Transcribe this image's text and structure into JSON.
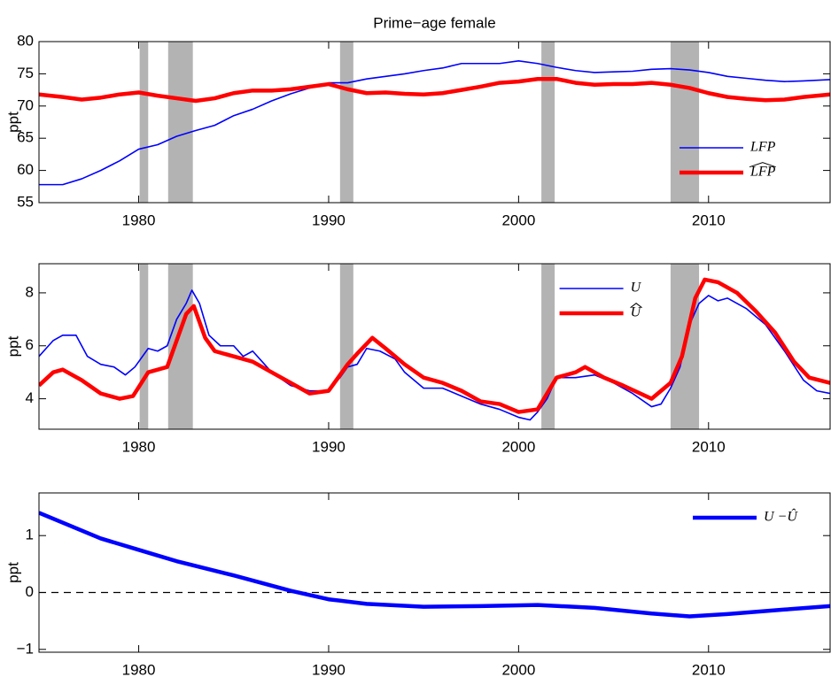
{
  "chart_data": [
    {
      "type": "line",
      "title": "Prime−age female",
      "ylabel": "ppt",
      "xlim": [
        1974.75,
        2016.4
      ],
      "xticks": [
        1980,
        1990,
        2000,
        2010
      ],
      "ylim": [
        55,
        80
      ],
      "yticks": [
        55,
        60,
        65,
        70,
        75,
        80
      ],
      "shaded": [
        [
          1980.05,
          1980.5
        ],
        [
          1981.55,
          1982.85
        ],
        [
          1990.6,
          1991.3
        ],
        [
          2001.2,
          2001.9
        ],
        [
          2008.0,
          2009.5
        ]
      ],
      "legend": "lower right",
      "x": [
        1974.75,
        1976,
        1977,
        1978,
        1979,
        1980,
        1981,
        1982,
        1983,
        1984,
        1985,
        1986,
        1987,
        1988,
        1989,
        1990,
        1991,
        1992,
        1993,
        1994,
        1995,
        1996,
        1997,
        1998,
        1999,
        2000,
        2001,
        2002,
        2003,
        2004,
        2005,
        2006,
        2007,
        2008,
        2009,
        2010,
        2011,
        2012,
        2013,
        2014,
        2015,
        2016.4
      ],
      "series": [
        {
          "name": "LFP",
          "hat": false,
          "color": "#0000ff",
          "linewidth": 1.6,
          "values": [
            57.8,
            57.8,
            58.7,
            60.0,
            61.5,
            63.3,
            64.0,
            65.3,
            66.2,
            67.0,
            68.5,
            69.5,
            70.8,
            71.9,
            72.8,
            73.6,
            73.6,
            74.2,
            74.6,
            75.0,
            75.5,
            75.9,
            76.6,
            76.6,
            76.6,
            77.0,
            76.6,
            76.0,
            75.5,
            75.2,
            75.3,
            75.4,
            75.7,
            75.8,
            75.6,
            75.2,
            74.6,
            74.3,
            74.0,
            73.8,
            73.9,
            74.1
          ]
        },
        {
          "name": "LFP",
          "hat": true,
          "color": "#ff0000",
          "linewidth": 4.5,
          "values": [
            71.8,
            71.4,
            71.0,
            71.3,
            71.8,
            72.1,
            71.6,
            71.2,
            70.8,
            71.2,
            72.0,
            72.4,
            72.4,
            72.6,
            73.0,
            73.4,
            72.6,
            72.0,
            72.1,
            71.9,
            71.8,
            72.0,
            72.5,
            73.0,
            73.6,
            73.8,
            74.2,
            74.2,
            73.6,
            73.3,
            73.4,
            73.4,
            73.6,
            73.3,
            72.8,
            72.0,
            71.4,
            71.1,
            70.9,
            71.0,
            71.4,
            71.8
          ]
        }
      ]
    },
    {
      "type": "line",
      "ylabel": "ppt",
      "xlim": [
        1974.75,
        2016.4
      ],
      "xticks": [
        1980,
        1990,
        2000,
        2010
      ],
      "ylim": [
        2.85,
        9.1
      ],
      "yticks": [
        4,
        6,
        8
      ],
      "shaded": [
        [
          1980.05,
          1980.5
        ],
        [
          1981.55,
          1982.85
        ],
        [
          1990.6,
          1991.3
        ],
        [
          2001.2,
          2001.9
        ],
        [
          2008.0,
          2009.5
        ]
      ],
      "legend": "best",
      "series": [
        {
          "name": "U",
          "hat": false,
          "color": "#0000ff",
          "linewidth": 1.6,
          "x": [
            1974.75,
            1975.5,
            1976,
            1976.7,
            1977.3,
            1978,
            1978.7,
            1979.3,
            1979.8,
            1980.5,
            1981,
            1981.5,
            1982,
            1982.5,
            1982.8,
            1983.2,
            1983.7,
            1984.3,
            1985,
            1985.5,
            1986,
            1986.5,
            1987,
            1988,
            1989,
            1990,
            1990.6,
            1991,
            1991.5,
            1992,
            1992.7,
            1993.5,
            1994,
            1995,
            1996,
            1997,
            1998,
            1999,
            2000,
            2000.6,
            2001,
            2001.5,
            2002,
            2003,
            2004,
            2005,
            2006,
            2007,
            2007.5,
            2008,
            2008.5,
            2009,
            2009.5,
            2010,
            2010.5,
            2011,
            2012,
            2013,
            2014,
            2015,
            2015.7,
            2016.4
          ],
          "values": [
            5.6,
            6.2,
            6.4,
            6.4,
            5.6,
            5.3,
            5.2,
            4.9,
            5.2,
            5.9,
            5.8,
            6.0,
            7.0,
            7.6,
            8.1,
            7.6,
            6.4,
            6.0,
            6.0,
            5.6,
            5.8,
            5.4,
            5.0,
            4.5,
            4.3,
            4.3,
            4.8,
            5.2,
            5.3,
            5.9,
            5.8,
            5.5,
            5.0,
            4.4,
            4.4,
            4.1,
            3.8,
            3.6,
            3.3,
            3.2,
            3.5,
            4.0,
            4.8,
            4.8,
            4.9,
            4.6,
            4.2,
            3.7,
            3.8,
            4.4,
            5.2,
            6.8,
            7.6,
            7.9,
            7.7,
            7.8,
            7.4,
            6.8,
            5.8,
            4.7,
            4.3,
            4.2
          ]
        },
        {
          "name": "U",
          "hat": true,
          "color": "#ff0000",
          "linewidth": 4.5,
          "x": [
            1974.75,
            1975.5,
            1976,
            1977,
            1978,
            1979,
            1979.7,
            1980.5,
            1981.5,
            1982,
            1982.5,
            1982.9,
            1983.5,
            1984,
            1985,
            1986,
            1987,
            1988,
            1989,
            1990,
            1991,
            1991.5,
            1992.3,
            1993,
            1994,
            1995,
            1996,
            1997,
            1998,
            1999,
            2000,
            2001,
            2002,
            2003,
            2003.5,
            2004.5,
            2005.5,
            2007,
            2008,
            2008.6,
            2009.3,
            2009.8,
            2010.5,
            2011.5,
            2012.5,
            2013.5,
            2014.5,
            2015.3,
            2016.4
          ],
          "values": [
            4.5,
            5.0,
            5.1,
            4.7,
            4.2,
            4.0,
            4.1,
            5.0,
            5.2,
            6.2,
            7.2,
            7.5,
            6.3,
            5.8,
            5.6,
            5.4,
            5.0,
            4.6,
            4.2,
            4.3,
            5.3,
            5.7,
            6.3,
            5.9,
            5.3,
            4.8,
            4.6,
            4.3,
            3.9,
            3.8,
            3.5,
            3.6,
            4.8,
            5.0,
            5.2,
            4.8,
            4.5,
            4.0,
            4.6,
            5.6,
            7.8,
            8.5,
            8.4,
            8.0,
            7.3,
            6.5,
            5.4,
            4.8,
            4.6
          ]
        }
      ]
    },
    {
      "type": "line",
      "ylabel": "ppt",
      "xlim": [
        1974.75,
        2016.4
      ],
      "xticks": [
        1980,
        1990,
        2000,
        2010
      ],
      "ylim": [
        -1.05,
        1.75
      ],
      "yticks": [
        {
          "value": -1,
          "label": "−1"
        },
        0,
        1
      ],
      "hline": 0,
      "legend": "upper right",
      "x": [
        1974.75,
        1978,
        1980,
        1982,
        1985,
        1988,
        1990,
        1992,
        1995,
        1998,
        2001,
        2004,
        2007,
        2009,
        2011,
        2014,
        2016.4
      ],
      "series": [
        {
          "name": "U −Û",
          "hat": false,
          "color": "#0000ff",
          "linewidth": 4.5,
          "values": [
            1.4,
            0.95,
            0.75,
            0.55,
            0.3,
            0.03,
            -0.12,
            -0.2,
            -0.25,
            -0.24,
            -0.22,
            -0.27,
            -0.37,
            -0.42,
            -0.38,
            -0.3,
            -0.24
          ]
        }
      ]
    }
  ]
}
